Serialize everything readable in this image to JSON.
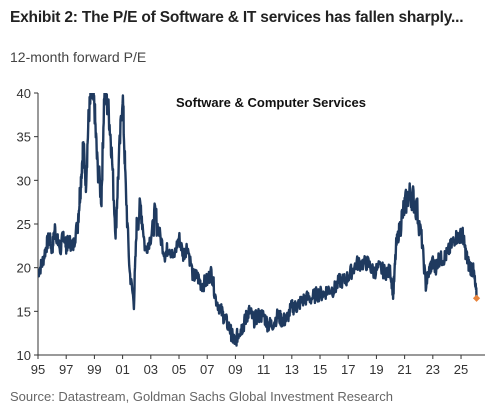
{
  "header": {
    "title": "Exhibit 2: The P/E of Software & IT services has fallen sharply...",
    "source": "Source: Datastream, Goldman Sachs Global Investment Research"
  },
  "chart_data": {
    "type": "line",
    "ylabel": "12-month forward P/E",
    "annotation": "Software & Computer Services",
    "ylim": [
      10,
      40
    ],
    "yticks": [
      10,
      15,
      20,
      25,
      30,
      35,
      40
    ],
    "xlim": [
      1995,
      2026.7
    ],
    "xticks": [
      1995,
      1997,
      1999,
      2001,
      2003,
      2005,
      2007,
      2009,
      2011,
      2013,
      2015,
      2017,
      2019,
      2021,
      2023,
      2025
    ],
    "xtick_labels": [
      "95",
      "97",
      "99",
      "01",
      "03",
      "05",
      "07",
      "09",
      "11",
      "13",
      "15",
      "17",
      "19",
      "21",
      "23",
      "25"
    ],
    "grid": false,
    "colors": {
      "line": "#1f3a5f",
      "marker": "#e8833a"
    },
    "series": [
      {
        "x": [
          1995.0,
          1995.3,
          1995.6,
          1995.8,
          1996.0,
          1996.2,
          1996.4,
          1996.6,
          1996.8,
          1997.0,
          1997.2,
          1997.5,
          1997.8,
          1998.0,
          1998.2,
          1998.4,
          1998.6,
          1998.8,
          1999.0,
          1999.2,
          1999.5,
          1999.7,
          2000.0,
          2000.2,
          2000.5,
          2000.7,
          2001.0,
          2001.2,
          2001.5,
          2001.8,
          2002.0,
          2002.3,
          2002.6,
          2003.0,
          2003.3,
          2003.6,
          2004.0,
          2004.3,
          2004.6,
          2005.0,
          2005.3,
          2005.6,
          2006.0,
          2006.3,
          2006.6,
          2007.0,
          2007.3,
          2007.6,
          2008.0,
          2008.3,
          2008.6,
          2008.8,
          2009.0,
          2009.2,
          2009.4,
          2009.6,
          2009.8,
          2010.0,
          2010.3,
          2010.6,
          2011.0,
          2011.3,
          2011.6,
          2012.0,
          2012.3,
          2012.6,
          2013.0,
          2013.3,
          2013.6,
          2014.0,
          2014.4,
          2014.8,
          2015.2,
          2015.6,
          2016.0,
          2016.4,
          2016.8,
          2017.2,
          2017.6,
          2018.0,
          2018.4,
          2018.8,
          2019.2,
          2019.6,
          2020.0,
          2020.2,
          2020.4,
          2020.7,
          2021.0,
          2021.3,
          2021.6,
          2021.9,
          2022.2,
          2022.5,
          2022.8,
          2023.0,
          2023.2,
          2023.4,
          2023.7,
          2024.0,
          2024.3,
          2024.6,
          2024.9,
          2025.1,
          2025.3,
          2025.5,
          2025.7,
          2025.9,
          2026.1
        ],
        "values": [
          19.5,
          20.5,
          22.5,
          23.5,
          22.0,
          24.5,
          23.0,
          22.0,
          24.0,
          22.5,
          23.0,
          22.5,
          25.0,
          29.0,
          34.0,
          30.0,
          37.5,
          40.0,
          38.5,
          32.0,
          28.0,
          40.0,
          38.0,
          34.0,
          24.0,
          31.0,
          40.0,
          30.0,
          19.5,
          16.0,
          25.0,
          27.0,
          22.0,
          23.5,
          26.0,
          24.0,
          21.5,
          22.5,
          21.0,
          23.5,
          21.5,
          22.5,
          19.0,
          19.0,
          18.0,
          18.5,
          19.5,
          16.5,
          15.0,
          14.0,
          13.0,
          12.0,
          11.5,
          12.5,
          13.0,
          13.5,
          14.5,
          15.0,
          14.0,
          14.5,
          14.5,
          13.5,
          13.5,
          14.5,
          14.0,
          14.0,
          15.5,
          15.5,
          16.0,
          16.5,
          16.5,
          17.0,
          17.0,
          17.5,
          17.5,
          18.5,
          18.5,
          19.5,
          20.5,
          20.5,
          20.5,
          19.5,
          20.0,
          19.5,
          19.5,
          17.0,
          22.5,
          25.0,
          27.0,
          28.5,
          28.0,
          26.5,
          23.5,
          18.0,
          20.0,
          20.5,
          20.0,
          21.0,
          21.0,
          21.5,
          22.5,
          23.5,
          23.5,
          24.0,
          22.0,
          20.5,
          20.0,
          19.5,
          16.5
        ]
      }
    ],
    "last_point": {
      "x": 2026.1,
      "value": 16.5
    }
  }
}
